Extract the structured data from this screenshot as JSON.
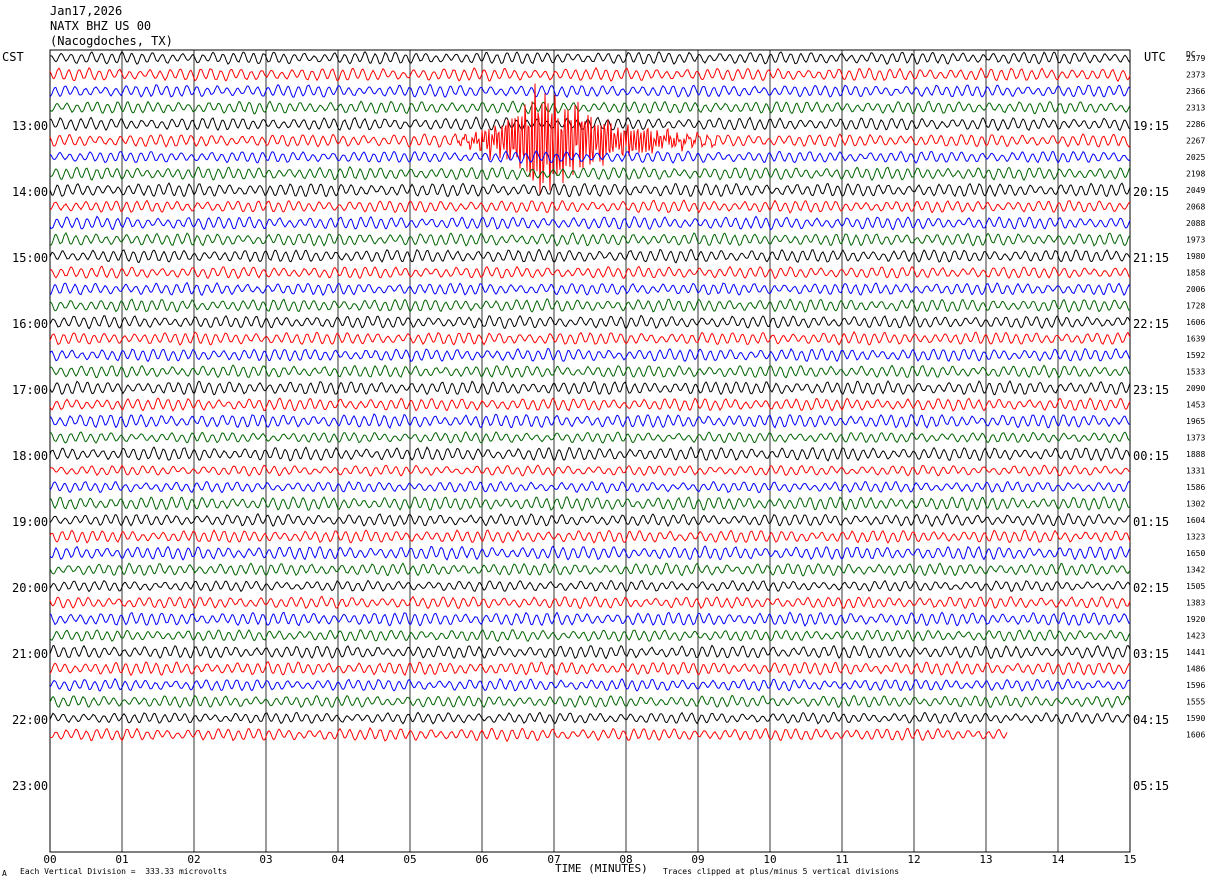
{
  "header": {
    "date": "Jan17,2026",
    "station": "NATX BHZ US 00",
    "location": "(Nacogdoches, TX)",
    "left_zone": "CST",
    "right_zone": "UTC",
    "dc_label": "DC"
  },
  "footer": {
    "xlabel": "TIME (MINUTES)",
    "scale_note": "Each Vertical Division =  333.33 microvolts",
    "clip_note": "Traces clipped at plus/minus 5 vertical divisions",
    "corner_mark": "A"
  },
  "chart_data": {
    "type": "line",
    "title": "",
    "xlabel": "TIME (MINUTES)",
    "xlim": [
      0,
      15
    ],
    "x_ticks": [
      "00",
      "01",
      "02",
      "03",
      "04",
      "05",
      "06",
      "07",
      "08",
      "09",
      "10",
      "11",
      "12",
      "13",
      "14",
      "15"
    ],
    "left_hour_labels": [
      "13:00",
      "14:00",
      "15:00",
      "16:00",
      "17:00",
      "18:00",
      "19:00",
      "20:00",
      "21:00",
      "22:00",
      "23:00"
    ],
    "right_hour_labels": [
      "19:15",
      "20:15",
      "21:15",
      "22:15",
      "23:15",
      "00:15",
      "01:15",
      "02:15",
      "03:15",
      "04:15",
      "05:15"
    ],
    "trace_colors": [
      "#000000",
      "#ff0000",
      "#0000ff",
      "#006400"
    ],
    "dc_offsets": [
      "2379",
      "2373",
      "2366",
      "2313",
      "2286",
      "2267",
      "2025",
      "2198",
      "2049",
      "2068",
      "2088",
      "1973",
      "1980",
      "1858",
      "2006",
      "1728",
      "1606",
      "1639",
      "1592",
      "1533",
      "2090",
      "1453",
      "1965",
      "1373",
      "1888",
      "1331",
      "1586",
      "1302",
      "1604",
      "1323",
      "1650",
      "1342",
      "1505",
      "1383",
      "1920",
      "1423",
      "1441",
      "1486",
      "1596",
      "1555",
      "1590",
      "1606"
    ],
    "event": {
      "color": "#ff0000",
      "trace_index": 5,
      "start_minute": 5.4,
      "peak_minute": 6.7,
      "end_minute": 9.3
    },
    "last_trace_end_minute": 13.3
  }
}
